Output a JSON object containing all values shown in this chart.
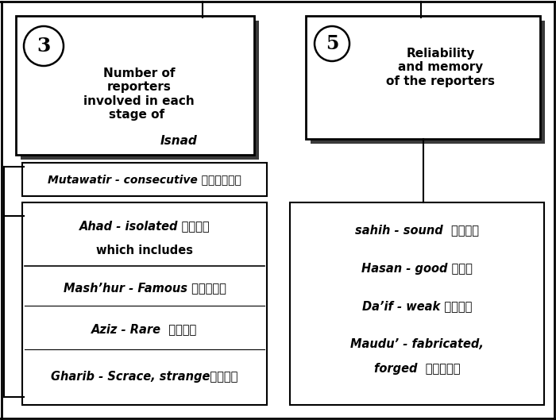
{
  "bg_color": "#ffffff",
  "box3_number": "3",
  "box5_number": "5",
  "box3_title_normal": "Number of\nreporters\ninvolved in each\nstage of ",
  "box3_title_italic": "Isnad",
  "box5_title": "Reliability\nand memory\nof the reporters",
  "mutawatir_line": "Mutawatir - consecutive متواتر",
  "ahad_line1": "Ahad - isolated آحاد",
  "ahad_line2": "which includes",
  "mashhur_line": "Mash’hur - Famous مشهور",
  "aziz_line": "Aziz - Rare  عزيز",
  "gharib_line": "Gharib - Scrace, strangeغريب",
  "sahih_line": "sahih - sound  صحيح",
  "hasan_line": "Hasan - good حسن",
  "daif_line": "Da’if - weak ضعيف",
  "maudu_line1": "Maudu’ - fabricated,",
  "maudu_line2": "forged  موضوع",
  "fig_w": 7.0,
  "fig_h": 5.29,
  "dpi": 100
}
